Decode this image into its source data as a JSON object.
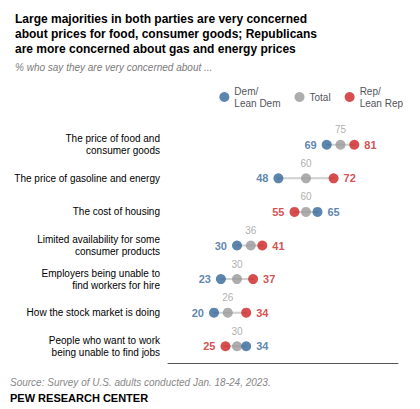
{
  "chart_data": {
    "type": "dumbbell",
    "title": "Large majorities in both parties are very concerned\nabout prices for food, consumer goods; Republicans\nare more concerned about gas and energy prices",
    "subtitle": "% who say they are very concerned about ...",
    "categories": [
      "The price of food and\nconsumer goods",
      "The price of gasoline and energy",
      "The cost of housing",
      "Limited availability for some\nconsumer products",
      "Employers being unable to\nfind workers for hire",
      "How the stock market is doing",
      "People who want to work\nbeing unable to find jobs"
    ],
    "series": [
      {
        "name": "Dem/\nLean Dem",
        "color": "#336699",
        "values": [
          69,
          48,
          65,
          30,
          23,
          20,
          34
        ]
      },
      {
        "name": "Total",
        "color": "#999999",
        "values": [
          75,
          60,
          60,
          36,
          30,
          26,
          30
        ]
      },
      {
        "name": "Rep/\nLean Rep",
        "color": "#cc2222",
        "values": [
          81,
          72,
          55,
          41,
          37,
          34,
          25
        ]
      }
    ],
    "xlim": [
      0,
      100
    ],
    "data_labels": true,
    "tick_labels": "y",
    "grid": false,
    "annotations": [
      "Source: Survey of U.S. adults conducted Jan. 18-24, 2023.",
      "PEW RESEARCH CENTER"
    ]
  }
}
